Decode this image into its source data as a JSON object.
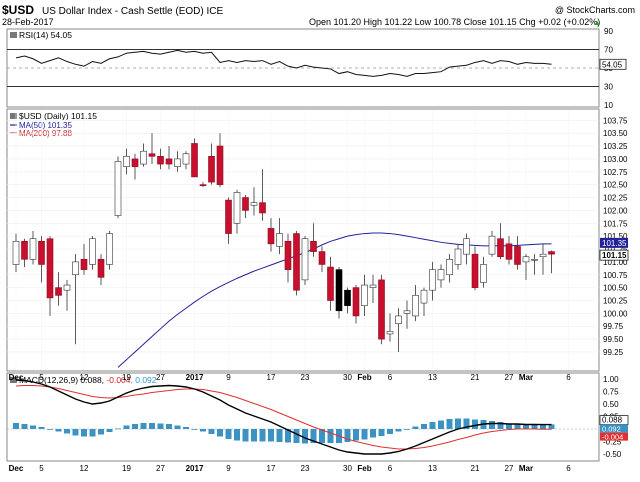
{
  "header": {
    "symbol": "$USD",
    "name": "US Dollar Index - Cash Settle (EOD)  ICE",
    "watermark": "@ StockCharts.com",
    "date": "28-Feb-2017",
    "ohlc": "Open 101.20  High 101.22  Low 100.78  Close 101.15  Chg +0.02 (+0.02%)",
    "ohlc_arrow": "▲"
  },
  "chart_data": [
    {
      "type": "line",
      "panel": "rsi",
      "legend": "RSI(14) 54.05",
      "ylim": [
        10,
        90
      ],
      "tick_labels": [
        "90",
        "70",
        "50",
        "30",
        "10"
      ],
      "reference_lines": [
        70,
        30
      ],
      "last_value_label": "54.05",
      "values": [
        61,
        63,
        60,
        55,
        58,
        61,
        57,
        54,
        52,
        57,
        55,
        60,
        62,
        66,
        67,
        68,
        66,
        65,
        67,
        69,
        67,
        68,
        66,
        67,
        56,
        58,
        56,
        58,
        57,
        58,
        54,
        57,
        52,
        50,
        53,
        51,
        50,
        49,
        44,
        46,
        43,
        42,
        41,
        42,
        44,
        43,
        41,
        44,
        44,
        45,
        46,
        51,
        52,
        53,
        56,
        58,
        55,
        58,
        57,
        54,
        56,
        55,
        55,
        54
      ]
    },
    {
      "type": "candlestick",
      "panel": "price",
      "legend": "$USD (Daily) 101.15",
      "ylim": [
        98.9,
        103.95
      ],
      "tick_labels": [
        "103.75",
        "103.50",
        "103.25",
        "103.00",
        "102.75",
        "102.50",
        "102.25",
        "102.00",
        "101.75",
        "101.50",
        "101.25",
        "101.00",
        "100.75",
        "100.50",
        "100.25",
        "100.00",
        "99.75",
        "99.50",
        "99.25"
      ],
      "last_value_labels": [
        "101.35",
        "101.15"
      ],
      "candles": [
        {
          "o": 100.95,
          "h": 101.55,
          "l": 100.8,
          "c": 101.4
        },
        {
          "o": 101.4,
          "h": 101.45,
          "l": 100.9,
          "c": 101.05
        },
        {
          "o": 101.05,
          "h": 101.6,
          "l": 100.95,
          "c": 101.45
        },
        {
          "o": 101.4,
          "h": 101.5,
          "l": 100.6,
          "c": 100.95
        },
        {
          "o": 101.45,
          "h": 101.5,
          "l": 99.95,
          "c": 100.3
        },
        {
          "o": 100.5,
          "h": 100.8,
          "l": 100.15,
          "c": 100.35
        },
        {
          "o": 100.45,
          "h": 100.65,
          "l": 100.05,
          "c": 100.55
        },
        {
          "o": 100.75,
          "h": 101.15,
          "l": 99.4,
          "c": 101.0
        },
        {
          "o": 101.05,
          "h": 101.35,
          "l": 100.75,
          "c": 100.85
        },
        {
          "o": 100.95,
          "h": 101.5,
          "l": 100.85,
          "c": 101.45
        },
        {
          "o": 101.05,
          "h": 101.15,
          "l": 100.55,
          "c": 100.7
        },
        {
          "o": 100.95,
          "h": 101.6,
          "l": 100.85,
          "c": 101.55
        },
        {
          "o": 101.9,
          "h": 103.05,
          "l": 101.85,
          "c": 102.95
        },
        {
          "o": 102.85,
          "h": 103.2,
          "l": 102.7,
          "c": 103.05
        },
        {
          "o": 103.0,
          "h": 103.1,
          "l": 102.6,
          "c": 102.85
        },
        {
          "o": 102.9,
          "h": 103.3,
          "l": 102.85,
          "c": 103.15
        },
        {
          "o": 103.1,
          "h": 103.5,
          "l": 102.9,
          "c": 103.05
        },
        {
          "o": 103.05,
          "h": 103.2,
          "l": 102.8,
          "c": 102.9
        },
        {
          "o": 103.0,
          "h": 103.25,
          "l": 102.8,
          "c": 102.9
        },
        {
          "o": 102.85,
          "h": 103.15,
          "l": 102.75,
          "c": 103.0
        },
        {
          "o": 102.9,
          "h": 103.15,
          "l": 102.8,
          "c": 103.1
        },
        {
          "o": 103.3,
          "h": 103.4,
          "l": 102.65,
          "c": 102.65
        },
        {
          "o": 102.5,
          "h": 102.55,
          "l": 102.45,
          "c": 102.48
        },
        {
          "o": 103.05,
          "h": 103.3,
          "l": 102.5,
          "c": 102.55
        },
        {
          "o": 103.25,
          "h": 103.5,
          "l": 102.45,
          "c": 102.5
        },
        {
          "o": 102.2,
          "h": 102.25,
          "l": 101.35,
          "c": 101.55
        },
        {
          "o": 101.75,
          "h": 102.4,
          "l": 101.55,
          "c": 102.35
        },
        {
          "o": 102.25,
          "h": 102.3,
          "l": 101.85,
          "c": 102.0
        },
        {
          "o": 102.1,
          "h": 102.45,
          "l": 101.9,
          "c": 102.15
        },
        {
          "o": 102.15,
          "h": 102.8,
          "l": 101.8,
          "c": 101.95
        },
        {
          "o": 101.65,
          "h": 101.85,
          "l": 101.2,
          "c": 101.35
        },
        {
          "o": 101.3,
          "h": 101.85,
          "l": 101.15,
          "c": 101.55
        },
        {
          "o": 101.4,
          "h": 101.55,
          "l": 100.6,
          "c": 100.85
        },
        {
          "o": 101.55,
          "h": 101.6,
          "l": 100.35,
          "c": 100.45
        },
        {
          "o": 100.65,
          "h": 101.5,
          "l": 100.55,
          "c": 101.45
        },
        {
          "o": 101.4,
          "h": 101.75,
          "l": 101.1,
          "c": 101.2
        },
        {
          "o": 101.2,
          "h": 101.3,
          "l": 100.8,
          "c": 100.95
        },
        {
          "o": 100.9,
          "h": 101.1,
          "l": 100.05,
          "c": 100.25
        },
        {
          "o": 100.85,
          "h": 100.9,
          "l": 99.9,
          "c": 100.05
        },
        {
          "o": 100.15,
          "h": 100.5,
          "l": 100.0,
          "c": 100.45
        },
        {
          "o": 100.5,
          "h": 100.55,
          "l": 99.8,
          "c": 99.95
        },
        {
          "o": 100.15,
          "h": 100.75,
          "l": 99.95,
          "c": 100.55
        },
        {
          "o": 100.5,
          "h": 100.75,
          "l": 100.2,
          "c": 100.55
        },
        {
          "o": 100.65,
          "h": 100.75,
          "l": 99.4,
          "c": 99.5
        },
        {
          "o": 99.6,
          "h": 100.0,
          "l": 99.45,
          "c": 99.65
        },
        {
          "o": 99.8,
          "h": 100.1,
          "l": 99.25,
          "c": 99.95
        },
        {
          "o": 100.0,
          "h": 100.25,
          "l": 99.7,
          "c": 100.05
        },
        {
          "o": 99.95,
          "h": 100.55,
          "l": 99.85,
          "c": 100.35
        },
        {
          "o": 100.2,
          "h": 100.5,
          "l": 99.95,
          "c": 100.45
        },
        {
          "o": 100.45,
          "h": 101.0,
          "l": 100.25,
          "c": 100.85
        },
        {
          "o": 100.65,
          "h": 100.95,
          "l": 100.5,
          "c": 100.85
        },
        {
          "o": 100.75,
          "h": 101.15,
          "l": 100.6,
          "c": 101.05
        },
        {
          "o": 100.95,
          "h": 101.35,
          "l": 100.85,
          "c": 101.25
        },
        {
          "o": 101.15,
          "h": 101.55,
          "l": 100.95,
          "c": 101.45
        },
        {
          "o": 101.15,
          "h": 101.3,
          "l": 100.45,
          "c": 100.5
        },
        {
          "o": 100.6,
          "h": 101.1,
          "l": 100.5,
          "c": 100.95
        },
        {
          "o": 101.15,
          "h": 101.6,
          "l": 101.1,
          "c": 101.5
        },
        {
          "o": 101.45,
          "h": 101.75,
          "l": 101.05,
          "c": 101.1
        },
        {
          "o": 101.35,
          "h": 101.5,
          "l": 100.95,
          "c": 101.05
        },
        {
          "o": 101.3,
          "h": 101.5,
          "l": 100.85,
          "c": 100.95
        },
        {
          "o": 101.0,
          "h": 101.15,
          "l": 100.65,
          "c": 101.1
        },
        {
          "o": 101.05,
          "h": 101.15,
          "l": 100.75,
          "c": 101.05
        },
        {
          "o": 101.1,
          "h": 101.35,
          "l": 100.75,
          "c": 101.15
        },
        {
          "o": 101.2,
          "h": 101.22,
          "l": 100.78,
          "c": 101.15
        }
      ],
      "filled_black": [
        38,
        39
      ],
      "ma_series": [
        {
          "name": "MA(50) 101.35",
          "color": "#22229a",
          "start_index": 12,
          "values": [
            98.95,
            99.1,
            99.25,
            99.4,
            99.55,
            99.7,
            99.85,
            99.98,
            100.1,
            100.22,
            100.33,
            100.43,
            100.52,
            100.6,
            100.68,
            100.75,
            100.82,
            100.88,
            100.94,
            101.0,
            101.06,
            101.12,
            101.18,
            101.25,
            101.33,
            101.4,
            101.45,
            101.5,
            101.53,
            101.55,
            101.56,
            101.56,
            101.55,
            101.53,
            101.5,
            101.47,
            101.44,
            101.41,
            101.38,
            101.36,
            101.34,
            101.33,
            101.32,
            101.31,
            101.31,
            101.31,
            101.31,
            101.32,
            101.33,
            101.34,
            101.35,
            101.35
          ]
        },
        {
          "name": "MA(200) 97.88",
          "color": "#cc2222",
          "start_index": 0,
          "values": []
        }
      ],
      "x_labels": [
        {
          "text": "Dec",
          "index": 0,
          "bold": true
        },
        {
          "text": "5",
          "index": 3
        },
        {
          "text": "12",
          "index": 8
        },
        {
          "text": "19",
          "index": 13
        },
        {
          "text": "27",
          "index": 17
        },
        {
          "text": "2017",
          "index": 21,
          "bold": true
        },
        {
          "text": "9",
          "index": 25
        },
        {
          "text": "17",
          "index": 30
        },
        {
          "text": "23",
          "index": 34
        },
        {
          "text": "30",
          "index": 39
        },
        {
          "text": "Feb",
          "index": 41,
          "bold": true
        },
        {
          "text": "6",
          "index": 44
        },
        {
          "text": "13",
          "index": 49
        },
        {
          "text": "21",
          "index": 54
        },
        {
          "text": "27",
          "index": 58
        },
        {
          "text": "Mar",
          "index": 60,
          "bold": true
        },
        {
          "text": "6",
          "index": 65
        }
      ]
    },
    {
      "type": "line",
      "panel": "macd",
      "legend_main": "MACD(12,26,9) 0.088, ",
      "legend_signal": "-0.004",
      "legend_hist": ", 0.092",
      "ylim": [
        -0.62,
        1.02
      ],
      "tick_labels": [
        "1.00",
        "0.75",
        "0.50",
        "0.25",
        "-0.25",
        "-0.50"
      ],
      "last_value_labels": [
        "0.088",
        "0.092",
        "-0.004"
      ],
      "macd": [
        0.98,
        0.97,
        0.94,
        0.9,
        0.84,
        0.76,
        0.68,
        0.6,
        0.54,
        0.5,
        0.52,
        0.56,
        0.64,
        0.72,
        0.78,
        0.82,
        0.85,
        0.86,
        0.87,
        0.86,
        0.84,
        0.8,
        0.74,
        0.66,
        0.58,
        0.48,
        0.4,
        0.32,
        0.26,
        0.2,
        0.14,
        0.06,
        -0.02,
        -0.1,
        -0.18,
        -0.24,
        -0.3,
        -0.36,
        -0.42,
        -0.46,
        -0.48,
        -0.5,
        -0.5,
        -0.5,
        -0.48,
        -0.45,
        -0.4,
        -0.34,
        -0.27,
        -0.2,
        -0.13,
        -0.06,
        0.0,
        0.04,
        0.07,
        0.1,
        0.11,
        0.11,
        0.1,
        0.1,
        0.09,
        0.09,
        0.088,
        0.088
      ],
      "signal": [
        0.86,
        0.87,
        0.87,
        0.86,
        0.84,
        0.81,
        0.77,
        0.73,
        0.69,
        0.65,
        0.63,
        0.62,
        0.63,
        0.65,
        0.68,
        0.7,
        0.73,
        0.75,
        0.77,
        0.79,
        0.8,
        0.8,
        0.79,
        0.76,
        0.73,
        0.68,
        0.63,
        0.57,
        0.51,
        0.45,
        0.39,
        0.32,
        0.25,
        0.18,
        0.11,
        0.04,
        -0.02,
        -0.08,
        -0.14,
        -0.2,
        -0.25,
        -0.29,
        -0.33,
        -0.36,
        -0.38,
        -0.4,
        -0.4,
        -0.39,
        -0.37,
        -0.34,
        -0.3,
        -0.26,
        -0.21,
        -0.17,
        -0.12,
        -0.08,
        -0.05,
        -0.03,
        -0.01,
        0.0,
        0.0,
        0.0,
        -0.004,
        -0.004
      ]
    }
  ]
}
